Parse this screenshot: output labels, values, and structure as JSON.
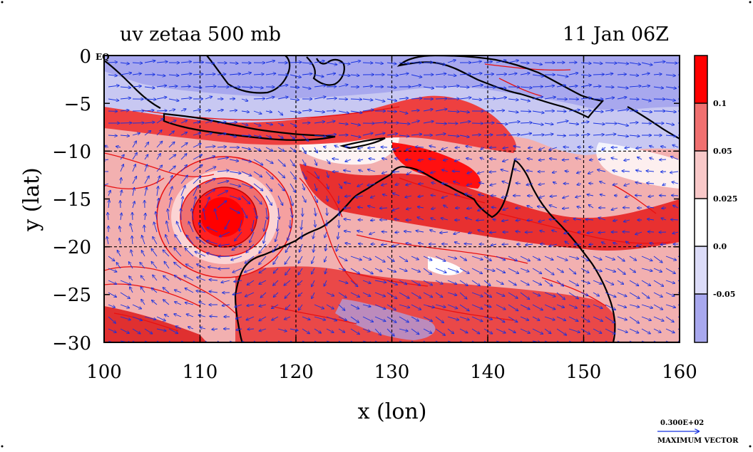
{
  "title_left": "uv zetaa 500 mb",
  "title_right": "11 Jan 06Z",
  "eq_marker": "EQ",
  "axis": {
    "xlabel": "x (lon)",
    "ylabel": "y (lat)",
    "x_ticks": [
      "100",
      "110",
      "120",
      "130",
      "140",
      "150",
      "160"
    ],
    "y_ticks": [
      "0",
      "−5",
      "−10",
      "−15",
      "−20",
      "−25",
      "−30"
    ],
    "xlim": [
      100,
      160
    ],
    "ylim": [
      -30,
      0
    ]
  },
  "colorbar": {
    "labels": [
      "0.1",
      "0.05",
      "0.025",
      "0.0",
      "-0.05"
    ],
    "colors": [
      "#ff0000",
      "#f07070",
      "#f8c8c8",
      "#ffffff",
      "#dcdcf8",
      "#a8a8ee"
    ]
  },
  "vector_key": {
    "value": "0.300E+02",
    "label": "MAXIMUM VECTOR"
  },
  "colors": {
    "contour_red": "#e81010",
    "vector_blue": "#1530e0",
    "coast": "#000000"
  }
}
